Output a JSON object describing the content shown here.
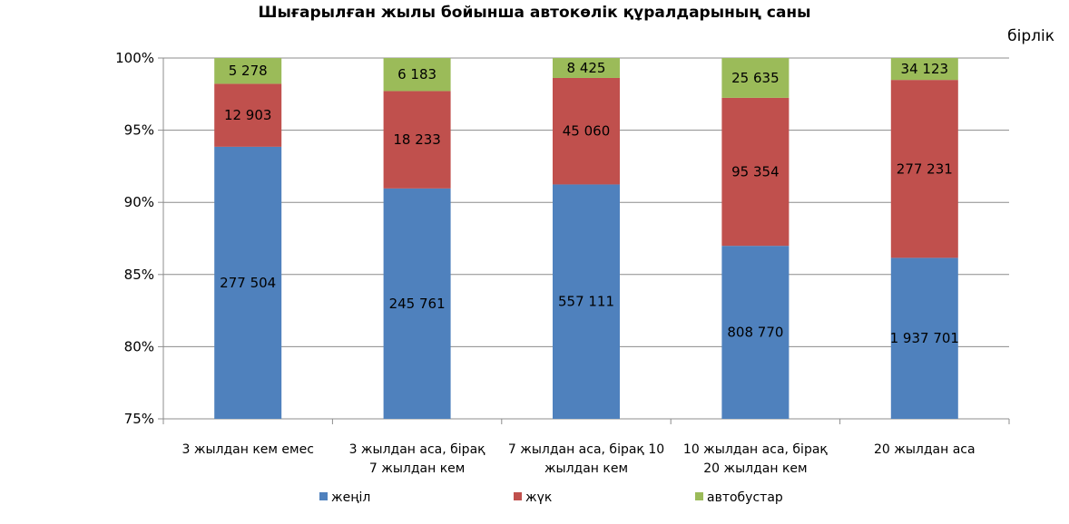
{
  "chart_data": {
    "type": "bar",
    "stacked": "percent",
    "title": "Шығарылған жылы бойынша автокөлік құралдарының саны",
    "unit": "бірлік",
    "ylim": [
      75,
      100
    ],
    "yticks": [
      "75%",
      "80%",
      "85%",
      "90%",
      "95%",
      "100%"
    ],
    "categories": [
      [
        "3 жылдан кем емес"
      ],
      [
        "3 жылдан аса, бірақ",
        "7 жылдан кем"
      ],
      [
        "7 жылдан аса, бірақ 10",
        "жылдан кем"
      ],
      [
        "10 жылдан аса, бірақ",
        "20 жылдан кем"
      ],
      [
        "20 жылдан аса"
      ]
    ],
    "series": [
      {
        "name": "жеңіл",
        "color": "#4F81BD",
        "values": [
          277504,
          245761,
          557111,
          808770,
          1937701
        ],
        "labels": [
          "277 504",
          "245 761",
          "557 111",
          "808 770",
          "1 937 701"
        ]
      },
      {
        "name": "жүк",
        "color": "#C0504D",
        "values": [
          12903,
          18233,
          45060,
          95354,
          277231
        ],
        "labels": [
          "12 903",
          "18 233",
          "45 060",
          "95 354",
          "277 231"
        ]
      },
      {
        "name": "автобустар",
        "color": "#9BBB59",
        "values": [
          5278,
          6183,
          8425,
          25635,
          34123
        ],
        "labels": [
          "5 278",
          "6 183",
          "8 425",
          "25 635",
          "34 123"
        ]
      }
    ],
    "grid": true,
    "legend": "bottom"
  }
}
